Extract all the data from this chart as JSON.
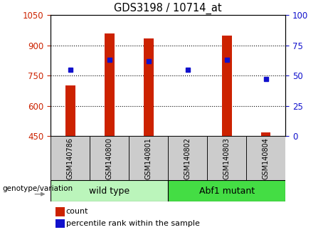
{
  "title": "GDS3198 / 10714_at",
  "samples": [
    "GSM140786",
    "GSM140800",
    "GSM140801",
    "GSM140802",
    "GSM140803",
    "GSM140804"
  ],
  "count_values": [
    700,
    960,
    935,
    0,
    950,
    468
  ],
  "percentile_values": [
    55,
    63,
    62,
    55,
    63,
    47
  ],
  "ylim_left": [
    450,
    1050
  ],
  "ylim_right": [
    0,
    100
  ],
  "yticks_left": [
    450,
    600,
    750,
    900,
    1050
  ],
  "yticks_right": [
    0,
    25,
    50,
    75,
    100
  ],
  "bar_color": "#cc2200",
  "dot_color": "#1111cc",
  "groups": [
    {
      "label": "wild type",
      "indices": [
        0,
        1,
        2
      ],
      "color": "#ccf5cc"
    },
    {
      "label": "Abf1 mutant",
      "indices": [
        3,
        4,
        5
      ],
      "color": "#44dd44"
    }
  ],
  "group_label": "genotype/variation",
  "legend_count": "count",
  "legend_pct": "percentile rank within the sample",
  "bar_width": 0.25,
  "tick_label_bg": "#cccccc",
  "plot_bg": "#ffffff"
}
